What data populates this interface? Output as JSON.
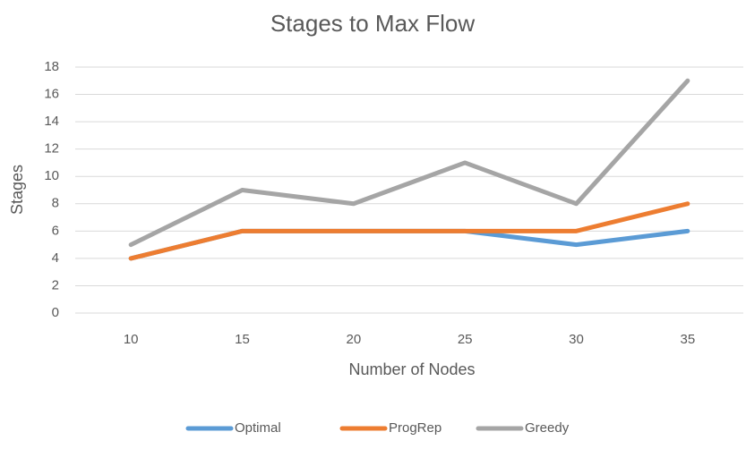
{
  "chart_data": {
    "type": "line",
    "title": "Stages to Max Flow",
    "x_label": "Number of Nodes",
    "y_label": "Stages",
    "categories": [
      "10",
      "15",
      "20",
      "25",
      "30",
      "35"
    ],
    "series": [
      {
        "name": "Optimal",
        "color": "#5b9bd5",
        "values": [
          4,
          6,
          6,
          6,
          5,
          6
        ]
      },
      {
        "name": "ProgRep",
        "color": "#ed7d31",
        "values": [
          4,
          6,
          6,
          6,
          6,
          8
        ]
      },
      {
        "name": "Greedy",
        "color": "#a5a5a5",
        "values": [
          5,
          9,
          8,
          11,
          8,
          17
        ]
      }
    ],
    "ylim": [
      0,
      18
    ],
    "yticks": [
      0,
      2,
      4,
      6,
      8,
      10,
      12,
      14,
      16,
      18
    ],
    "grid": true,
    "legend": "bottom"
  }
}
